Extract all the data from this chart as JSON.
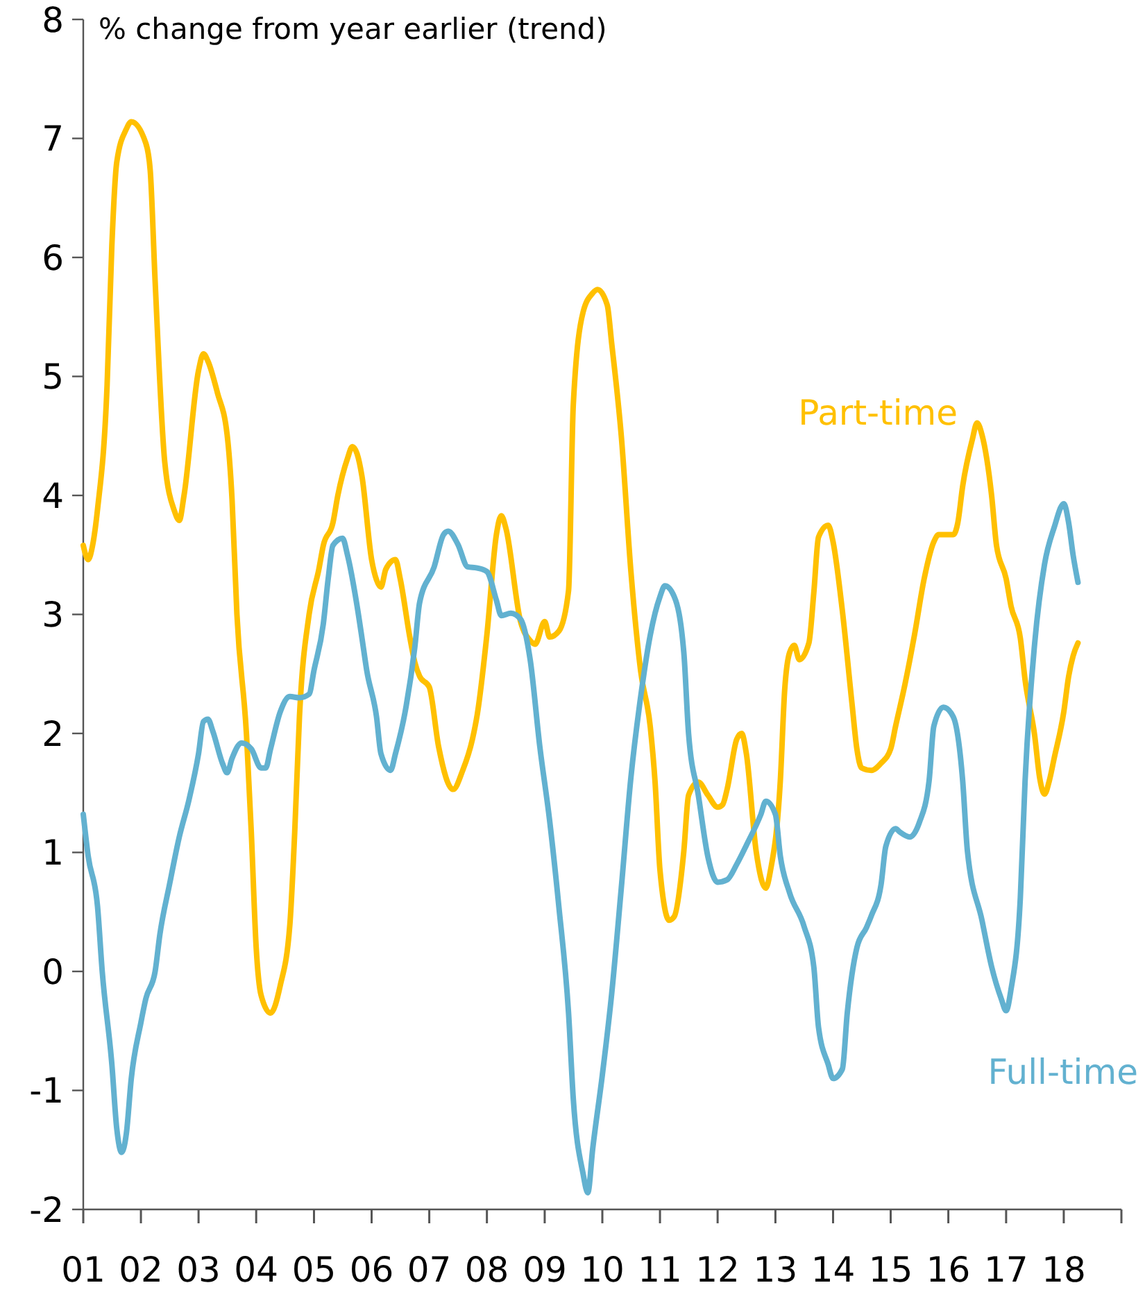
{
  "chart_data": {
    "type": "line",
    "ylabel": "% change from year earlier (trend)",
    "xlim": [
      "2001-01",
      "2019-01"
    ],
    "xticks": [
      {
        "value": "2001",
        "label": "01"
      },
      {
        "value": "2002",
        "label": "02"
      },
      {
        "value": "2003",
        "label": "03"
      },
      {
        "value": "2004",
        "label": "04"
      },
      {
        "value": "2005",
        "label": "05"
      },
      {
        "value": "2006",
        "label": "06"
      },
      {
        "value": "2007",
        "label": "07"
      },
      {
        "value": "2008",
        "label": "08"
      },
      {
        "value": "2009",
        "label": "09"
      },
      {
        "value": "2010",
        "label": "10"
      },
      {
        "value": "2011",
        "label": "11"
      },
      {
        "value": "2012",
        "label": "12"
      },
      {
        "value": "2013",
        "label": "13"
      },
      {
        "value": "2014",
        "label": "14"
      },
      {
        "value": "2015",
        "label": "15"
      },
      {
        "value": "2016",
        "label": "16"
      },
      {
        "value": "2017",
        "label": "17"
      },
      {
        "value": "2018",
        "label": "18"
      },
      {
        "value": "2019",
        "label": null
      }
    ],
    "ylim": [
      -2,
      8
    ],
    "yticks": [
      -2,
      -1,
      0,
      1,
      2,
      3,
      4,
      5,
      6,
      7,
      8
    ],
    "grid": false,
    "line_style": "solid",
    "series": [
      {
        "name": "Part-time",
        "color": "#ffc000",
        "x": [
          "2001-01",
          "2001-02",
          "2001-03",
          "2001-04",
          "2001-06",
          "2001-07",
          "2001-08",
          "2001-10",
          "2001-11",
          "2002-02",
          "2002-03",
          "2002-04",
          "2002-06",
          "2002-08",
          "2002-09",
          "2002-10",
          "2003-01",
          "2003-02",
          "2003-03",
          "2003-05",
          "2003-07",
          "2003-08",
          "2003-09",
          "2003-11",
          "2003-12",
          "2004-01",
          "2004-02",
          "2004-04",
          "2004-06",
          "2004-08",
          "2004-09",
          "2004-10",
          "2004-12",
          "2005-02",
          "2005-03",
          "2005-05",
          "2005-06",
          "2005-08",
          "2005-09",
          "2005-10",
          "2005-11",
          "2006-01",
          "2006-02",
          "2006-03",
          "2006-04",
          "2006-06",
          "2006-07",
          "2006-09",
          "2006-10",
          "2006-11",
          "2007-01",
          "2007-03",
          "2007-06",
          "2007-08",
          "2007-10",
          "2007-11",
          "2008-01",
          "2008-03",
          "2008-04",
          "2008-05",
          "2008-08",
          "2008-10",
          "2008-11",
          "2009-01",
          "2009-02",
          "2009-04",
          "2009-06",
          "2009-07",
          "2009-09",
          "2009-11",
          "2009-12",
          "2010-02",
          "2010-03",
          "2010-05",
          "2010-07",
          "2010-09",
          "2010-11",
          "2010-12",
          "2011-01",
          "2011-03",
          "2011-04",
          "2011-06",
          "2011-07",
          "2011-09",
          "2011-11",
          "2012-01",
          "2012-02",
          "2012-03",
          "2012-05",
          "2012-06",
          "2012-07",
          "2012-09",
          "2012-11",
          "2012-12",
          "2013-02",
          "2013-03",
          "2013-04",
          "2013-05",
          "2013-06",
          "2013-08",
          "2013-09",
          "2013-10",
          "2013-12",
          "2014-01",
          "2014-03",
          "2014-05",
          "2014-06",
          "2014-07",
          "2014-09",
          "2014-11",
          "2015-01",
          "2015-02",
          "2015-04",
          "2015-06",
          "2015-08",
          "2015-10",
          "2015-11",
          "2016-02",
          "2016-03",
          "2016-04",
          "2016-06",
          "2016-07",
          "2016-08",
          "2016-10",
          "2016-11",
          "2017-01",
          "2017-02",
          "2017-04",
          "2017-05",
          "2017-07",
          "2017-08",
          "2017-09",
          "2017-10",
          "2017-11",
          "2018-01",
          "2018-02",
          "2018-03",
          "2018-04"
        ],
        "values": [
          3.58,
          3.46,
          3.58,
          3.88,
          4.93,
          6.1,
          6.8,
          7.08,
          7.14,
          6.96,
          6.73,
          5.8,
          4.28,
          3.87,
          3.79,
          4.0,
          5.05,
          5.19,
          5.13,
          4.86,
          4.51,
          3.97,
          3.0,
          1.98,
          1.17,
          0.2,
          -0.2,
          -0.35,
          -0.12,
          0.39,
          1.17,
          2.14,
          3.0,
          3.38,
          3.58,
          3.77,
          4.0,
          4.31,
          4.41,
          4.35,
          4.16,
          3.46,
          3.29,
          3.23,
          3.38,
          3.46,
          3.3,
          2.8,
          2.6,
          2.48,
          2.39,
          1.89,
          1.53,
          1.69,
          1.95,
          2.16,
          2.83,
          3.67,
          3.83,
          3.72,
          2.94,
          2.78,
          2.75,
          2.94,
          2.81,
          2.86,
          3.2,
          4.76,
          5.54,
          5.7,
          5.73,
          5.6,
          5.28,
          4.5,
          3.36,
          2.52,
          2.05,
          1.59,
          0.85,
          0.43,
          0.46,
          1.01,
          1.48,
          1.59,
          1.48,
          1.38,
          1.4,
          1.53,
          1.95,
          2.0,
          1.83,
          1.01,
          0.7,
          0.85,
          1.6,
          2.37,
          2.68,
          2.74,
          2.62,
          2.76,
          3.18,
          3.65,
          3.75,
          3.61,
          3.03,
          2.25,
          1.87,
          1.71,
          1.69,
          1.75,
          1.87,
          2.06,
          2.41,
          2.83,
          3.3,
          3.61,
          3.67,
          3.67,
          3.77,
          4.08,
          4.47,
          4.61,
          4.51,
          4.0,
          3.58,
          3.3,
          3.07,
          2.8,
          2.45,
          1.98,
          1.63,
          1.49,
          1.6,
          1.79,
          2.18,
          2.48,
          2.65,
          2.76
        ]
      },
      {
        "name": "Full-time",
        "color": "#62b1d0",
        "x": [
          "2001-01",
          "2001-02",
          "2001-04",
          "2001-05",
          "2001-07",
          "2001-08",
          "2001-09",
          "2001-10",
          "2001-11",
          "2002-01",
          "2002-02",
          "2002-04",
          "2002-05",
          "2002-07",
          "2002-09",
          "2002-11",
          "2003-01",
          "2003-02",
          "2003-03",
          "2003-04",
          "2003-06",
          "2003-07",
          "2003-08",
          "2003-10",
          "2003-12",
          "2004-02",
          "2004-03",
          "2004-04",
          "2004-06",
          "2004-08",
          "2004-10",
          "2004-12",
          "2005-01",
          "2005-03",
          "2005-04",
          "2005-05",
          "2005-07",
          "2005-08",
          "2005-10",
          "2005-11",
          "2005-12",
          "2006-02",
          "2006-03",
          "2006-05",
          "2006-06",
          "2006-08",
          "2006-10",
          "2006-11",
          "2007-02",
          "2007-04",
          "2007-05",
          "2007-07",
          "2007-09",
          "2007-11",
          "2008-01",
          "2008-03",
          "2008-04",
          "2008-06",
          "2008-08",
          "2008-10",
          "2008-12",
          "2009-02",
          "2009-04",
          "2009-06",
          "2009-07",
          "2009-09",
          "2009-10",
          "2009-11",
          "2010-01",
          "2010-03",
          "2010-05",
          "2010-07",
          "2010-09",
          "2010-11",
          "2011-01",
          "2011-02",
          "2011-04",
          "2011-06",
          "2011-07",
          "2011-09",
          "2011-11",
          "2012-01",
          "2012-03",
          "2012-05",
          "2012-07",
          "2012-10",
          "2012-11",
          "2013-01",
          "2013-02",
          "2013-04",
          "2013-07",
          "2013-09",
          "2013-10",
          "2013-12",
          "2014-01",
          "2014-03",
          "2014-04",
          "2014-06",
          "2014-08",
          "2014-09",
          "2014-11",
          "2014-12",
          "2015-02",
          "2015-03",
          "2015-05",
          "2015-07",
          "2015-09",
          "2015-10",
          "2015-12",
          "2016-02",
          "2016-04",
          "2016-05",
          "2016-08",
          "2016-10",
          "2016-12",
          "2017-01",
          "2017-02",
          "2017-04",
          "2017-05",
          "2017-07",
          "2017-09",
          "2017-11",
          "2018-01",
          "2018-02",
          "2018-03",
          "2018-04"
        ],
        "values": [
          1.32,
          0.97,
          0.55,
          0,
          -0.78,
          -1.32,
          -1.52,
          -1.36,
          -0.9,
          -0.43,
          -0.23,
          0,
          0.31,
          0.73,
          1.13,
          1.44,
          1.83,
          2.1,
          2.12,
          2.02,
          1.75,
          1.67,
          1.79,
          1.92,
          1.87,
          1.71,
          1.71,
          1.87,
          2.18,
          2.31,
          2.3,
          2.33,
          2.53,
          2.92,
          3.3,
          3.58,
          3.64,
          3.5,
          3.07,
          2.8,
          2.53,
          2.14,
          1.83,
          1.69,
          1.83,
          2.18,
          2.72,
          3.1,
          3.4,
          3.67,
          3.7,
          3.59,
          3.4,
          3.39,
          3.36,
          3.12,
          2.99,
          3.01,
          2.96,
          2.62,
          1.89,
          1.27,
          0.54,
          -0.35,
          -1.07,
          -1.7,
          -1.86,
          -1.49,
          -0.87,
          -0.19,
          0.7,
          1.63,
          2.31,
          2.83,
          3.15,
          3.24,
          3.15,
          2.68,
          2.0,
          1.48,
          0.96,
          0.75,
          0.77,
          0.9,
          1.06,
          1.32,
          1.43,
          1.32,
          0.97,
          0.66,
          0.38,
          0.04,
          -0.47,
          -0.78,
          -0.9,
          -0.82,
          -0.35,
          0.2,
          0.37,
          0.47,
          0.73,
          1.05,
          1.2,
          1.17,
          1.13,
          1.25,
          1.6,
          2.06,
          2.22,
          2.14,
          1.6,
          1.01,
          0.43,
          0.04,
          -0.23,
          -0.33,
          -0.15,
          0.62,
          1.6,
          2.76,
          3.42,
          3.73,
          3.93,
          3.77,
          3.5,
          3.27
        ]
      }
    ]
  }
}
